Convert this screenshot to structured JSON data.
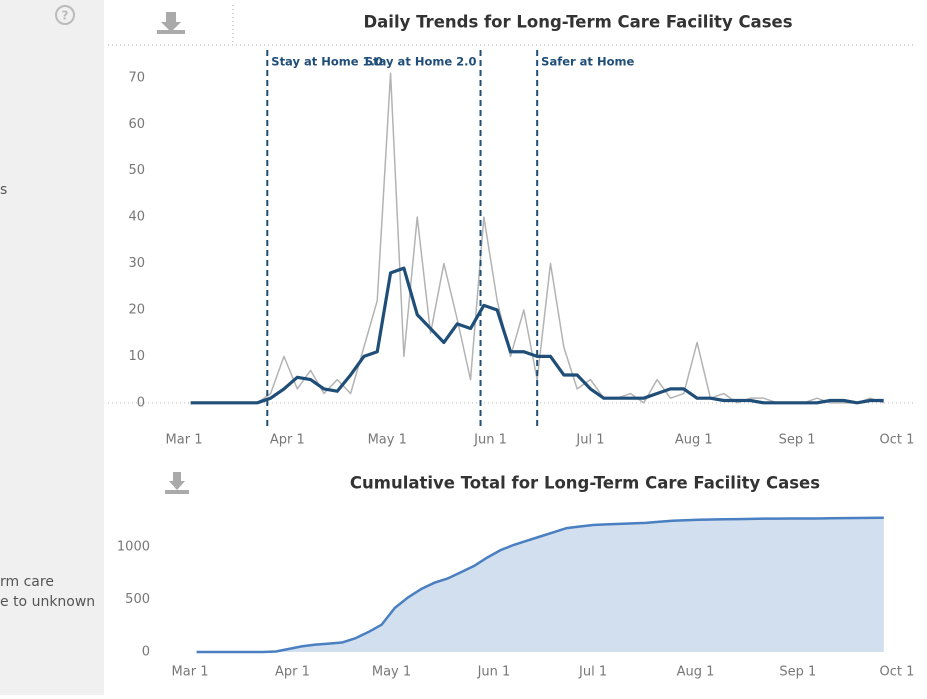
{
  "sidebar": {
    "texts": [
      "s",
      "rm care",
      "e to unknown"
    ]
  },
  "chart_data": [
    {
      "type": "line",
      "title": "Daily Trends for Long-Term Care Facility Cases",
      "x": [
        "Mar 3",
        "Mar 7",
        "Mar 11",
        "Mar 15",
        "Mar 19",
        "Mar 23",
        "Mar 27",
        "Mar 31",
        "Apr 4",
        "Apr 8",
        "Apr 12",
        "Apr 16",
        "Apr 20",
        "Apr 24",
        "Apr 28",
        "May 2",
        "May 6",
        "May 10",
        "May 14",
        "May 18",
        "May 22",
        "May 26",
        "May 30",
        "Jun 3",
        "Jun 7",
        "Jun 11",
        "Jun 15",
        "Jun 19",
        "Jun 23",
        "Jun 27",
        "Jul 1",
        "Jul 5",
        "Jul 9",
        "Jul 13",
        "Jul 17",
        "Jul 21",
        "Jul 25",
        "Jul 29",
        "Aug 2",
        "Aug 6",
        "Aug 10",
        "Aug 14",
        "Aug 18",
        "Aug 22",
        "Aug 26",
        "Aug 30",
        "Sep 3",
        "Sep 7",
        "Sep 11",
        "Sep 15",
        "Sep 19",
        "Sep 23",
        "Sep 27"
      ],
      "series": [
        {
          "color": "#b3b3b3",
          "values": [
            0,
            0,
            0,
            0,
            0,
            0,
            2,
            10,
            3,
            7,
            2,
            5,
            2,
            12,
            22,
            71,
            10,
            40,
            15,
            30,
            18,
            5,
            40,
            22,
            10,
            20,
            5,
            30,
            12,
            3,
            5,
            1,
            1,
            2,
            0,
            5,
            1,
            2,
            13,
            1,
            2,
            0,
            1,
            1,
            0,
            0,
            0,
            1,
            0,
            0,
            0,
            1,
            0
          ]
        },
        {
          "color": "#1f4e79",
          "values": [
            0,
            0,
            0,
            0,
            0,
            0,
            1,
            3,
            5.5,
            5,
            3,
            2.5,
            6,
            10,
            11,
            28,
            29,
            19,
            16,
            13,
            17,
            16,
            21,
            20,
            11,
            11,
            10,
            10,
            6,
            6,
            3,
            1,
            1,
            1,
            1,
            2,
            3,
            3,
            1,
            1,
            0.5,
            0.5,
            0.5,
            0,
            0,
            0,
            0,
            0,
            0.5,
            0.5,
            0,
            0.5,
            0.5
          ]
        }
      ],
      "xlim": [
        "Mar 1",
        "Oct 1"
      ],
      "xticks": [
        "Mar 1",
        "Apr 1",
        "May 1",
        "Jun 1",
        "Jul 1",
        "Aug 1",
        "Sep 1",
        "Oct 1"
      ],
      "ylim": [
        -3.7,
        76
      ],
      "yticks": [
        0,
        10,
        20,
        30,
        40,
        50,
        60,
        70
      ],
      "annotations": [
        {
          "label": "Stay at Home 1.0",
          "x": "Mar 26"
        },
        {
          "label": "Stay at Home 2.0",
          "x": "May 29"
        },
        {
          "label": "Safer at Home",
          "x": "Jun 15"
        }
      ]
    },
    {
      "type": "area",
      "title": "Cumulative Total for Long-Term Care Facility Cases",
      "x": [
        "Mar 3",
        "Mar 7",
        "Mar 11",
        "Mar 15",
        "Mar 19",
        "Mar 23",
        "Mar 27",
        "Mar 31",
        "Apr 4",
        "Apr 8",
        "Apr 12",
        "Apr 16",
        "Apr 20",
        "Apr 24",
        "Apr 28",
        "May 2",
        "May 6",
        "May 10",
        "May 14",
        "May 18",
        "May 22",
        "May 26",
        "May 30",
        "Jun 3",
        "Jun 7",
        "Jun 11",
        "Jun 15",
        "Jun 19",
        "Jun 23",
        "Jun 27",
        "Jul 1",
        "Jul 5",
        "Jul 9",
        "Jul 13",
        "Jul 17",
        "Jul 21",
        "Jul 25",
        "Jul 29",
        "Aug 2",
        "Aug 6",
        "Aug 10",
        "Aug 14",
        "Aug 18",
        "Aug 22",
        "Aug 26",
        "Aug 30",
        "Sep 3",
        "Sep 7",
        "Sep 11",
        "Sep 15",
        "Sep 19",
        "Sep 23",
        "Sep 27"
      ],
      "series": [
        {
          "color": "#4a7fc1",
          "values": [
            0,
            0,
            0,
            0,
            0,
            0,
            5,
            30,
            55,
            70,
            80,
            90,
            130,
            190,
            260,
            420,
            520,
            600,
            660,
            700,
            760,
            820,
            900,
            970,
            1020,
            1060,
            1100,
            1140,
            1180,
            1195,
            1210,
            1215,
            1220,
            1225,
            1230,
            1240,
            1250,
            1255,
            1260,
            1262,
            1264,
            1266,
            1268,
            1270,
            1270,
            1271,
            1272,
            1272,
            1274,
            1275,
            1276,
            1277,
            1278
          ]
        }
      ],
      "xlim": [
        "Mar 1",
        "Oct 1"
      ],
      "xticks": [
        "Mar 1",
        "Apr 1",
        "May 1",
        "Jun 1",
        "Jul 1",
        "Aug 1",
        "Sep 1",
        "Oct 1"
      ],
      "ylim": [
        0,
        1400
      ],
      "yticks": [
        0,
        500,
        1000
      ]
    }
  ]
}
